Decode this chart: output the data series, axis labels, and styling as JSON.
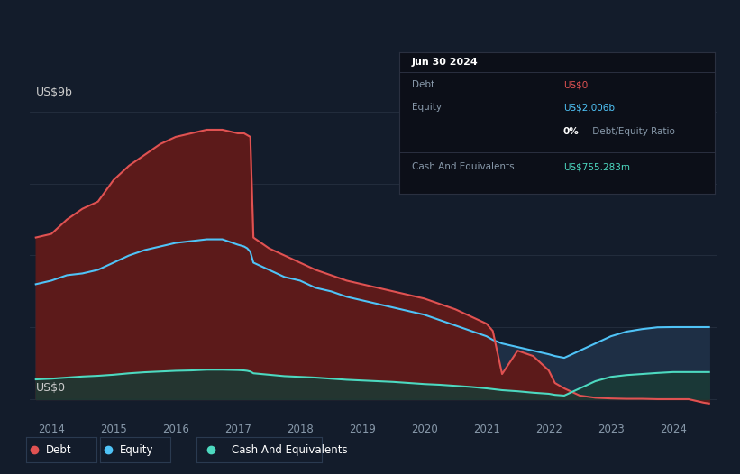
{
  "background_color": "#131c2b",
  "plot_bg_color": "#131c2b",
  "title_y_label": "US$9b",
  "zero_label": "US$0",
  "x_ticks": [
    2014,
    2015,
    2016,
    2017,
    2018,
    2019,
    2020,
    2021,
    2022,
    2023,
    2024
  ],
  "debt_color": "#e05252",
  "equity_color": "#4fc3f7",
  "cash_color": "#4dd9c0",
  "debt_fill_color": "#5c1a1a",
  "equity_fill_color": "#1e2f45",
  "cash_fill_color": "#1a3a35",
  "grid_color": "#263040",
  "ylim_max": 9.0,
  "xlim_min": 2013.65,
  "xlim_max": 2024.72,
  "years": [
    2013.75,
    2014.0,
    2014.25,
    2014.5,
    2014.75,
    2015.0,
    2015.25,
    2015.5,
    2015.75,
    2016.0,
    2016.25,
    2016.5,
    2016.75,
    2017.0,
    2017.1,
    2017.15,
    2017.2,
    2017.25,
    2017.5,
    2017.75,
    2018.0,
    2018.25,
    2018.5,
    2018.75,
    2019.0,
    2019.25,
    2019.5,
    2019.75,
    2020.0,
    2020.25,
    2020.5,
    2020.75,
    2021.0,
    2021.1,
    2021.25,
    2021.5,
    2021.75,
    2022.0,
    2022.1,
    2022.25,
    2022.5,
    2022.75,
    2023.0,
    2023.25,
    2023.5,
    2023.75,
    2024.0,
    2024.25,
    2024.5,
    2024.58
  ],
  "debt": [
    4.5,
    4.6,
    5.0,
    5.3,
    5.5,
    6.1,
    6.5,
    6.8,
    7.1,
    7.3,
    7.4,
    7.5,
    7.5,
    7.4,
    7.4,
    7.35,
    7.3,
    4.5,
    4.2,
    4.0,
    3.8,
    3.6,
    3.45,
    3.3,
    3.2,
    3.1,
    3.0,
    2.9,
    2.8,
    2.65,
    2.5,
    2.3,
    2.1,
    1.9,
    0.7,
    1.35,
    1.2,
    0.8,
    0.45,
    0.3,
    0.1,
    0.04,
    0.02,
    0.01,
    0.01,
    0.0,
    0.0,
    0.0,
    -0.1,
    -0.12
  ],
  "equity": [
    3.2,
    3.3,
    3.45,
    3.5,
    3.6,
    3.8,
    4.0,
    4.15,
    4.25,
    4.35,
    4.4,
    4.45,
    4.45,
    4.3,
    4.25,
    4.2,
    4.1,
    3.8,
    3.6,
    3.4,
    3.3,
    3.1,
    3.0,
    2.85,
    2.75,
    2.65,
    2.55,
    2.45,
    2.35,
    2.2,
    2.05,
    1.9,
    1.75,
    1.65,
    1.55,
    1.45,
    1.35,
    1.25,
    1.2,
    1.15,
    1.35,
    1.55,
    1.75,
    1.88,
    1.95,
    2.0,
    2.006,
    2.006,
    2.006,
    2.006
  ],
  "cash": [
    0.55,
    0.57,
    0.6,
    0.63,
    0.65,
    0.68,
    0.72,
    0.75,
    0.77,
    0.79,
    0.8,
    0.82,
    0.82,
    0.81,
    0.8,
    0.79,
    0.77,
    0.72,
    0.68,
    0.64,
    0.62,
    0.6,
    0.57,
    0.54,
    0.52,
    0.5,
    0.48,
    0.45,
    0.42,
    0.4,
    0.37,
    0.34,
    0.3,
    0.28,
    0.25,
    0.22,
    0.18,
    0.15,
    0.12,
    0.1,
    0.3,
    0.5,
    0.62,
    0.67,
    0.7,
    0.73,
    0.755,
    0.755,
    0.755,
    0.755
  ],
  "tooltip": {
    "date": "Jun 30 2024",
    "debt_label": "Debt",
    "debt_value": "US$0",
    "debt_value_color": "#e05252",
    "equity_label": "Equity",
    "equity_value": "US$2.006b",
    "equity_value_color": "#4fc3f7",
    "ratio_bold": "0%",
    "ratio_rest": " Debt/Equity Ratio",
    "cash_label": "Cash And Equivalents",
    "cash_value": "US$755.283m",
    "cash_value_color": "#4dd9c0"
  },
  "legend": [
    {
      "label": "Debt",
      "color": "#e05252"
    },
    {
      "label": "Equity",
      "color": "#4fc3f7"
    },
    {
      "label": "Cash And Equivalents",
      "color": "#4dd9c0"
    }
  ]
}
